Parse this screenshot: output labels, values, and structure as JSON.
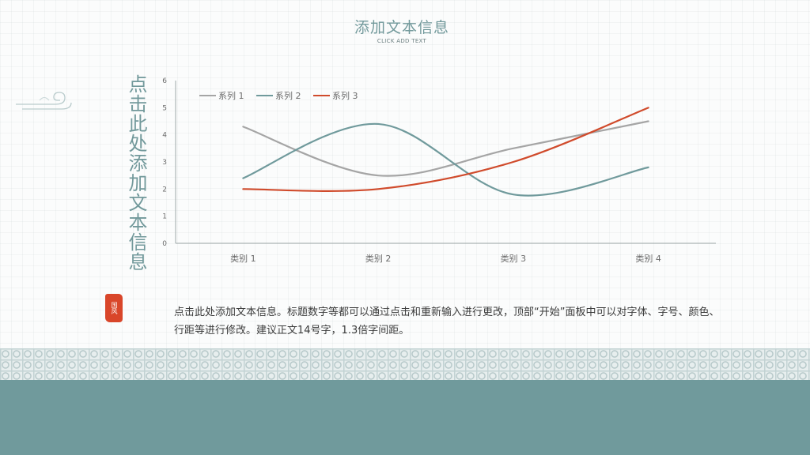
{
  "slide": {
    "title": "添加文本信息",
    "subtitle": "CLICK ADD TEXT",
    "vertical_title": "点击此处添加文本信息",
    "seal_text": "国风",
    "body_text": "点击此处添加文本信息。标题数字等都可以通过点击和重新输入进行更改，顶部“开始”面板中可以对字体、字号、颜色、行距等进行修改。建议正文14号字，1.3倍字间距。"
  },
  "colors": {
    "teal": "#709a9c",
    "accent_red": "#d04b2c",
    "axis": "#9ea7a8",
    "label": "#6b6b6b"
  },
  "chart_data": {
    "type": "line",
    "smooth": true,
    "categories": [
      "类别 1",
      "类别 2",
      "类别 3",
      "类别 4"
    ],
    "ylim": [
      0,
      6
    ],
    "yticks": [
      0,
      1,
      2,
      3,
      4,
      5,
      6
    ],
    "grid": false,
    "legend_position": "top-left",
    "series": [
      {
        "name": "系列 1",
        "values": [
          4.3,
          2.5,
          3.5,
          4.5
        ],
        "color": "#a5a5a5"
      },
      {
        "name": "系列 2",
        "values": [
          2.4,
          4.4,
          1.8,
          2.8
        ],
        "color": "#709a9c"
      },
      {
        "name": "系列 3",
        "values": [
          2.0,
          2.0,
          3.0,
          5.0
        ],
        "color": "#d04b2c"
      }
    ]
  }
}
